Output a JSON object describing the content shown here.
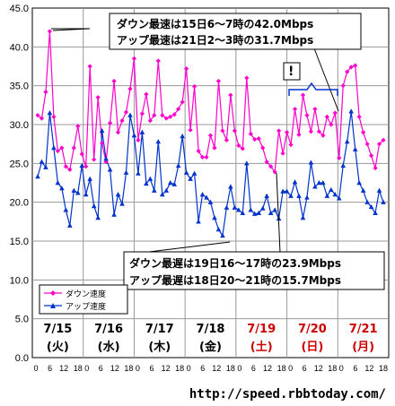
{
  "chart_data": {
    "type": "line",
    "x_ticks": [
      "0",
      "6",
      "12",
      "18"
    ],
    "days": [
      {
        "date": "7/15",
        "weekday": "(火)",
        "highlight": false
      },
      {
        "date": "7/16",
        "weekday": "(水)",
        "highlight": false
      },
      {
        "date": "7/17",
        "weekday": "(木)",
        "highlight": false
      },
      {
        "date": "7/18",
        "weekday": "(金)",
        "highlight": false
      },
      {
        "date": "7/19",
        "weekday": "(土)",
        "highlight": true
      },
      {
        "date": "7/20",
        "weekday": "(日)",
        "highlight": true
      },
      {
        "date": "7/21",
        "weekday": "(月)",
        "highlight": true
      }
    ],
    "ylim": [
      0,
      45
    ],
    "yticks": [
      0,
      5,
      10,
      15,
      20,
      25,
      30,
      35,
      40,
      45
    ],
    "grid": true,
    "legend_position": "bottom-left",
    "series": [
      {
        "name": "ダウン速度",
        "color": "#ff00cc",
        "marker": "diamond",
        "values": [
          31.2,
          30.8,
          34.2,
          42.0,
          31.0,
          26.6,
          27.0,
          24.6,
          24.2,
          27.0,
          29.8,
          26.2,
          24.6,
          37.5,
          25.5,
          33.5,
          27.6,
          25.2,
          30.2,
          35.6,
          29.0,
          30.5,
          31.6,
          34.6,
          38.5,
          28.0,
          31.4,
          33.9,
          30.5,
          31.2,
          38.2,
          31.2,
          30.8,
          31.0,
          31.3,
          32.0,
          32.9,
          37.2,
          29.3,
          34.9,
          26.6,
          25.8,
          25.8,
          28.6,
          27.0,
          35.6,
          29.2,
          28.0,
          33.8,
          29.2,
          27.3,
          26.9,
          36.0,
          28.8,
          28.1,
          28.2,
          27.0,
          25.2,
          24.6,
          23.9,
          29.2,
          26.3,
          29.0,
          27.4,
          32.0,
          28.7,
          33.8,
          31.2,
          29.1,
          32.0,
          29.1,
          28.6,
          31.0,
          30.0,
          31.5,
          25.7,
          35.0,
          36.8,
          37.4,
          37.6,
          31.0,
          29.0,
          27.5,
          26.0,
          24.4,
          27.5,
          28.0
        ]
      },
      {
        "name": "アップ速度",
        "color": "#0033cc",
        "marker": "triangle",
        "values": [
          23.3,
          25.2,
          24.5,
          31.5,
          27.0,
          22.5,
          21.8,
          19.0,
          17.0,
          21.5,
          21.2,
          24.7,
          21.0,
          23.0,
          19.5,
          18.0,
          29.2,
          25.6,
          24.2,
          18.4,
          21.0,
          19.8,
          23.8,
          31.2,
          28.6,
          23.7,
          29.0,
          22.4,
          23.0,
          21.5,
          27.8,
          21.0,
          21.5,
          22.5,
          22.3,
          24.7,
          28.5,
          23.8,
          23.0,
          23.7,
          17.5,
          21.0,
          20.6,
          20.0,
          18.0,
          16.5,
          15.7,
          19.3,
          22.0,
          19.3,
          19.0,
          18.6,
          25.0,
          19.0,
          18.5,
          18.6,
          19.2,
          20.8,
          18.6,
          19.0,
          17.9,
          21.4,
          21.4,
          20.8,
          22.6,
          20.8,
          18.0,
          20.6,
          25.1,
          22.0,
          22.5,
          22.5,
          20.8,
          21.6,
          21.0,
          20.5,
          24.7,
          27.8,
          31.7,
          26.8,
          22.5,
          21.5,
          20.0,
          19.4,
          18.6,
          21.5,
          20.0
        ]
      }
    ]
  },
  "annotations": {
    "top_line1": "ダウン最速は15日6〜7時の42.0Mbps",
    "top_line2": "アップ最速は21日2〜3時の31.7Mbps",
    "bottom_line1": "ダウン最遅は19日16〜17時の23.9Mbps",
    "bottom_line2": "アップ最遅は18日20〜21時の15.7Mbps",
    "exclaim": "!"
  },
  "source_url": "http://speed.rbbtoday.com/",
  "colors": {
    "background": "#ffffff",
    "plot": "#ffffff",
    "grid": "#999999",
    "weekend_label": "#cc0000",
    "weekday_label": "#000000"
  }
}
